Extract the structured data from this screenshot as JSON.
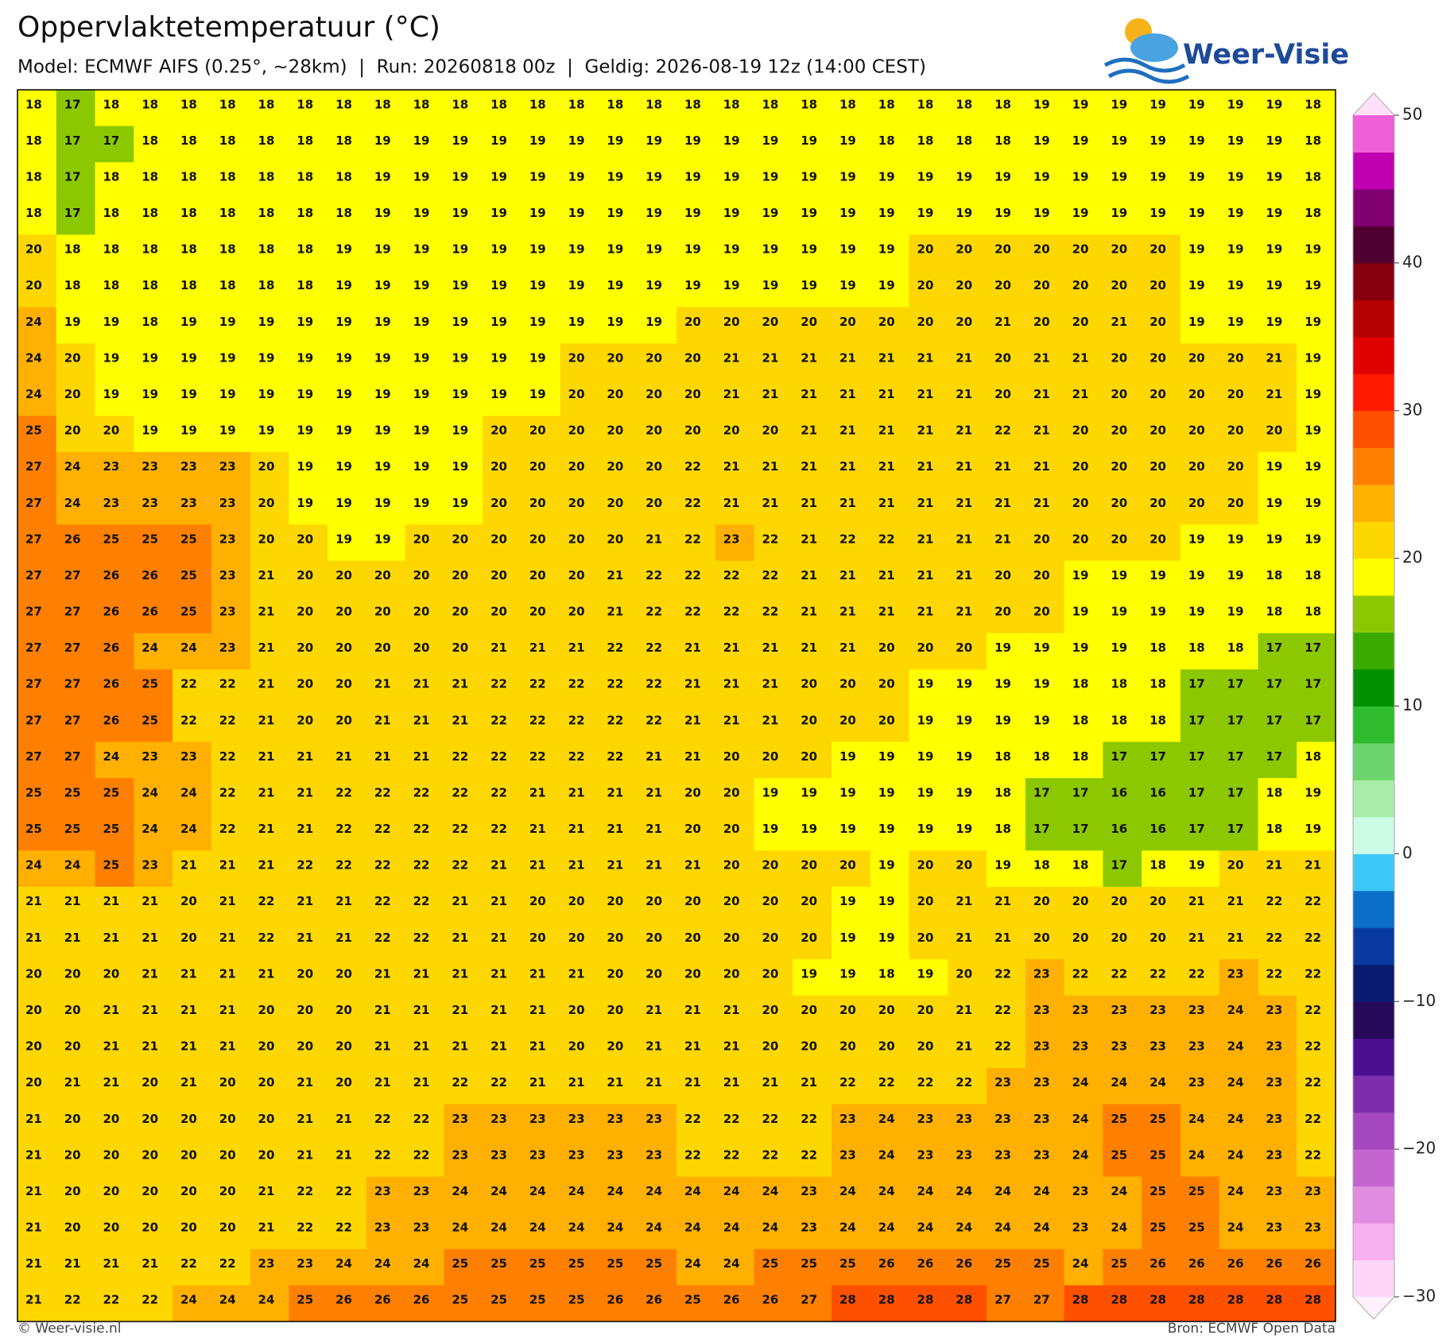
{
  "header": {
    "title": "Oppervlaktetemperatuur (°C)",
    "subtitle": "Model: ECMWF AIFS (0.25°, ~28km)  |  Run: 20260818 00z  |  Geldig: 2026-08-19 12z (14:00 CEST)"
  },
  "logo": "Weer-Visie",
  "grid": {
    "rows": [
      [
        18,
        17,
        18,
        18,
        18,
        18,
        18,
        18,
        18,
        18,
        18,
        18,
        18,
        18,
        18,
        18,
        18,
        18,
        18,
        18,
        18,
        18,
        18,
        18,
        18,
        18,
        19,
        19,
        19,
        19,
        19,
        19,
        19,
        18
      ],
      [
        18,
        17,
        17,
        18,
        18,
        18,
        18,
        18,
        18,
        19,
        19,
        19,
        19,
        19,
        19,
        19,
        19,
        19,
        19,
        19,
        19,
        19,
        18,
        18,
        18,
        18,
        19,
        19,
        19,
        19,
        19,
        19,
        19,
        18
      ],
      [
        18,
        17,
        18,
        18,
        18,
        18,
        18,
        18,
        18,
        19,
        19,
        19,
        19,
        19,
        19,
        19,
        19,
        19,
        19,
        19,
        19,
        19,
        19,
        19,
        19,
        19,
        19,
        19,
        19,
        19,
        19,
        19,
        19,
        18
      ],
      [
        18,
        17,
        18,
        18,
        18,
        18,
        18,
        18,
        18,
        19,
        19,
        19,
        19,
        19,
        19,
        19,
        19,
        19,
        19,
        19,
        19,
        19,
        19,
        19,
        19,
        19,
        19,
        19,
        19,
        19,
        19,
        19,
        19,
        18
      ],
      [
        20,
        18,
        18,
        18,
        18,
        18,
        18,
        18,
        19,
        19,
        19,
        19,
        19,
        19,
        19,
        19,
        19,
        19,
        19,
        19,
        19,
        19,
        19,
        20,
        20,
        20,
        20,
        20,
        20,
        20,
        19,
        19,
        19,
        19
      ],
      [
        20,
        18,
        18,
        18,
        18,
        18,
        18,
        18,
        19,
        19,
        19,
        19,
        19,
        19,
        19,
        19,
        19,
        19,
        19,
        19,
        19,
        19,
        19,
        20,
        20,
        20,
        20,
        20,
        20,
        20,
        19,
        19,
        19,
        19
      ],
      [
        24,
        19,
        19,
        18,
        19,
        19,
        19,
        19,
        19,
        19,
        19,
        19,
        19,
        19,
        19,
        19,
        19,
        20,
        20,
        20,
        20,
        20,
        20,
        20,
        20,
        21,
        20,
        20,
        21,
        20,
        19,
        19,
        19,
        19
      ],
      [
        24,
        20,
        19,
        19,
        19,
        19,
        19,
        19,
        19,
        19,
        19,
        19,
        19,
        19,
        20,
        20,
        20,
        20,
        21,
        21,
        21,
        21,
        21,
        21,
        21,
        20,
        21,
        21,
        20,
        20,
        20,
        20,
        21,
        19
      ],
      [
        24,
        20,
        19,
        19,
        19,
        19,
        19,
        19,
        19,
        19,
        19,
        19,
        19,
        19,
        20,
        20,
        20,
        20,
        21,
        21,
        21,
        21,
        21,
        21,
        21,
        20,
        21,
        21,
        20,
        20,
        20,
        20,
        21,
        19
      ],
      [
        25,
        20,
        20,
        19,
        19,
        19,
        19,
        19,
        19,
        19,
        19,
        19,
        20,
        20,
        20,
        20,
        20,
        20,
        20,
        20,
        21,
        21,
        21,
        21,
        21,
        22,
        21,
        20,
        20,
        20,
        20,
        20,
        20,
        19
      ],
      [
        27,
        24,
        23,
        23,
        23,
        23,
        20,
        19,
        19,
        19,
        19,
        19,
        20,
        20,
        20,
        20,
        20,
        22,
        21,
        21,
        21,
        21,
        21,
        21,
        21,
        21,
        21,
        20,
        20,
        20,
        20,
        20,
        19,
        19
      ],
      [
        27,
        24,
        23,
        23,
        23,
        23,
        20,
        19,
        19,
        19,
        19,
        19,
        20,
        20,
        20,
        20,
        20,
        22,
        21,
        21,
        21,
        21,
        21,
        21,
        21,
        21,
        21,
        20,
        20,
        20,
        20,
        20,
        19,
        19
      ],
      [
        27,
        26,
        25,
        25,
        25,
        23,
        20,
        20,
        19,
        19,
        20,
        20,
        20,
        20,
        20,
        20,
        21,
        22,
        23,
        22,
        21,
        22,
        22,
        21,
        21,
        21,
        20,
        20,
        20,
        20,
        19,
        19,
        19,
        19
      ],
      [
        27,
        27,
        26,
        26,
        25,
        23,
        21,
        20,
        20,
        20,
        20,
        20,
        20,
        20,
        20,
        21,
        22,
        22,
        22,
        22,
        21,
        21,
        21,
        21,
        21,
        20,
        20,
        19,
        19,
        19,
        19,
        19,
        18,
        18
      ],
      [
        27,
        27,
        26,
        26,
        25,
        23,
        21,
        20,
        20,
        20,
        20,
        20,
        20,
        20,
        20,
        21,
        22,
        22,
        22,
        22,
        21,
        21,
        21,
        21,
        21,
        20,
        20,
        19,
        19,
        19,
        19,
        19,
        18,
        18
      ],
      [
        27,
        27,
        26,
        24,
        24,
        23,
        21,
        20,
        20,
        20,
        20,
        20,
        21,
        21,
        21,
        22,
        22,
        21,
        21,
        21,
        21,
        21,
        20,
        20,
        20,
        19,
        19,
        19,
        19,
        18,
        18,
        18,
        17,
        17
      ],
      [
        27,
        27,
        26,
        25,
        22,
        22,
        21,
        20,
        20,
        21,
        21,
        21,
        22,
        22,
        22,
        22,
        22,
        21,
        21,
        21,
        20,
        20,
        20,
        19,
        19,
        19,
        19,
        18,
        18,
        18,
        17,
        17,
        17,
        17
      ],
      [
        27,
        27,
        26,
        25,
        22,
        22,
        21,
        20,
        20,
        21,
        21,
        21,
        22,
        22,
        22,
        22,
        22,
        21,
        21,
        21,
        20,
        20,
        20,
        19,
        19,
        19,
        19,
        18,
        18,
        18,
        17,
        17,
        17,
        17
      ],
      [
        27,
        27,
        24,
        23,
        23,
        22,
        21,
        21,
        21,
        21,
        21,
        22,
        22,
        22,
        22,
        22,
        21,
        21,
        20,
        20,
        20,
        19,
        19,
        19,
        19,
        18,
        18,
        18,
        17,
        17,
        17,
        17,
        17,
        18
      ],
      [
        25,
        25,
        25,
        24,
        24,
        22,
        21,
        21,
        22,
        22,
        22,
        22,
        22,
        21,
        21,
        21,
        21,
        20,
        20,
        19,
        19,
        19,
        19,
        19,
        19,
        18,
        17,
        17,
        16,
        16,
        17,
        17,
        18,
        19
      ],
      [
        25,
        25,
        25,
        24,
        24,
        22,
        21,
        21,
        22,
        22,
        22,
        22,
        22,
        21,
        21,
        21,
        21,
        20,
        20,
        19,
        19,
        19,
        19,
        19,
        19,
        18,
        17,
        17,
        16,
        16,
        17,
        17,
        18,
        19
      ],
      [
        24,
        24,
        25,
        23,
        21,
        21,
        21,
        22,
        22,
        22,
        22,
        22,
        21,
        21,
        21,
        21,
        21,
        21,
        20,
        20,
        20,
        20,
        19,
        20,
        20,
        19,
        18,
        18,
        17,
        18,
        19,
        20,
        21,
        21
      ],
      [
        21,
        21,
        21,
        21,
        20,
        21,
        22,
        21,
        21,
        22,
        22,
        21,
        21,
        20,
        20,
        20,
        20,
        20,
        20,
        20,
        20,
        19,
        19,
        20,
        21,
        21,
        20,
        20,
        20,
        20,
        21,
        21,
        22,
        22
      ],
      [
        21,
        21,
        21,
        21,
        20,
        21,
        22,
        21,
        21,
        22,
        22,
        21,
        21,
        20,
        20,
        20,
        20,
        20,
        20,
        20,
        20,
        19,
        19,
        20,
        21,
        21,
        20,
        20,
        20,
        20,
        21,
        21,
        22,
        22
      ],
      [
        20,
        20,
        20,
        21,
        21,
        21,
        21,
        20,
        20,
        21,
        21,
        21,
        21,
        21,
        21,
        20,
        20,
        20,
        20,
        20,
        19,
        19,
        18,
        19,
        20,
        22,
        23,
        22,
        22,
        22,
        22,
        23,
        22,
        22
      ],
      [
        20,
        20,
        21,
        21,
        21,
        21,
        20,
        20,
        20,
        21,
        21,
        21,
        21,
        21,
        20,
        20,
        21,
        21,
        21,
        20,
        20,
        20,
        20,
        20,
        21,
        22,
        23,
        23,
        23,
        23,
        23,
        24,
        23,
        22
      ],
      [
        20,
        20,
        21,
        21,
        21,
        21,
        20,
        20,
        20,
        21,
        21,
        21,
        21,
        21,
        20,
        20,
        21,
        21,
        21,
        20,
        20,
        20,
        20,
        20,
        21,
        22,
        23,
        23,
        23,
        23,
        23,
        24,
        23,
        22
      ],
      [
        20,
        21,
        21,
        20,
        21,
        20,
        20,
        21,
        20,
        21,
        21,
        22,
        22,
        21,
        21,
        21,
        21,
        21,
        21,
        21,
        21,
        22,
        22,
        22,
        22,
        23,
        23,
        24,
        24,
        24,
        23,
        24,
        23,
        22
      ],
      [
        21,
        20,
        20,
        20,
        20,
        20,
        20,
        21,
        21,
        22,
        22,
        23,
        23,
        23,
        23,
        23,
        23,
        22,
        22,
        22,
        22,
        23,
        24,
        23,
        23,
        23,
        23,
        24,
        25,
        25,
        24,
        24,
        23,
        22
      ],
      [
        21,
        20,
        20,
        20,
        20,
        20,
        20,
        21,
        21,
        22,
        22,
        23,
        23,
        23,
        23,
        23,
        23,
        22,
        22,
        22,
        22,
        23,
        24,
        23,
        23,
        23,
        23,
        24,
        25,
        25,
        24,
        24,
        23,
        22
      ],
      [
        21,
        20,
        20,
        20,
        20,
        20,
        21,
        22,
        22,
        23,
        23,
        24,
        24,
        24,
        24,
        24,
        24,
        24,
        24,
        24,
        23,
        24,
        24,
        24,
        24,
        24,
        24,
        23,
        24,
        25,
        25,
        24,
        23,
        23
      ],
      [
        21,
        20,
        20,
        20,
        20,
        20,
        21,
        22,
        22,
        23,
        23,
        24,
        24,
        24,
        24,
        24,
        24,
        24,
        24,
        24,
        23,
        24,
        24,
        24,
        24,
        24,
        24,
        23,
        24,
        25,
        25,
        24,
        23,
        23
      ],
      [
        21,
        21,
        21,
        21,
        22,
        22,
        23,
        23,
        24,
        24,
        24,
        25,
        25,
        25,
        25,
        25,
        25,
        24,
        24,
        25,
        25,
        25,
        26,
        26,
        26,
        25,
        25,
        24,
        25,
        26,
        26,
        26,
        26,
        26
      ],
      [
        21,
        22,
        22,
        22,
        24,
        24,
        24,
        25,
        26,
        26,
        26,
        25,
        25,
        25,
        25,
        26,
        26,
        25,
        26,
        26,
        27,
        28,
        28,
        28,
        28,
        27,
        27,
        28,
        28,
        28,
        28,
        28,
        28,
        28
      ]
    ]
  },
  "colorbar": {
    "ticks": [
      50,
      40,
      30,
      20,
      10,
      0,
      {
        "value": -10,
        "label": "−10"
      },
      {
        "value": -20,
        "label": "−20"
      },
      {
        "value": -30,
        "label": "−30"
      }
    ],
    "colors": [
      "#ffd6f8",
      "#f7b0ef",
      "#e08de0",
      "#c465cf",
      "#a548c0",
      "#7c2eaa",
      "#4b1090",
      "#250a5a",
      "#0a1a6e",
      "#0a3aa0",
      "#0b6ec8",
      "#3ec8f8",
      "#ccfce6",
      "#a8eca8",
      "#6cd46c",
      "#2ebc2e",
      "#009000",
      "#3aaa00",
      "#8cc800",
      "#ffff00",
      "#ffd700",
      "#ffb000",
      "#ff8000",
      "#ff5000",
      "#ff1a00",
      "#e00000",
      "#b40000",
      "#860010",
      "#500030",
      "#800070",
      "#c000b0",
      "#f060d8"
    ],
    "under_color": "#fff0fc",
    "over_color": "#ffe0f8"
  },
  "footer": {
    "left": "© Weer-visie.nl",
    "right": "Bron: ECMWF Open Data"
  }
}
